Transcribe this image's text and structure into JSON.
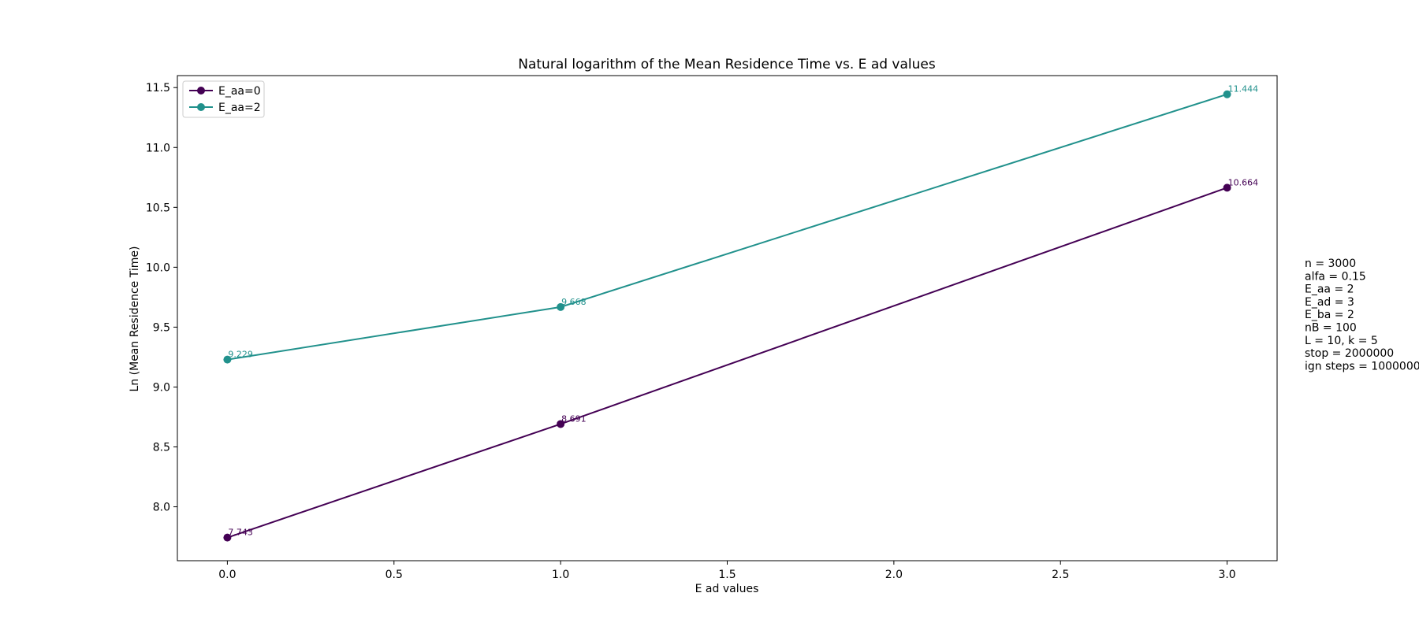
{
  "chart_data": {
    "type": "line",
    "title": "Natural logarithm of the Mean Residence Time vs. E ad values",
    "xlabel": "E ad values",
    "ylabel": "Ln (Mean Residence Time)",
    "xlim": [
      -0.15,
      3.15
    ],
    "ylim": [
      7.55,
      11.6
    ],
    "x_ticks": [
      0.0,
      0.5,
      1.0,
      1.5,
      2.0,
      2.5,
      3.0
    ],
    "x_tick_labels": [
      "0.0",
      "0.5",
      "1.0",
      "1.5",
      "2.0",
      "2.5",
      "3.0"
    ],
    "y_ticks": [
      8.0,
      8.5,
      9.0,
      9.5,
      10.0,
      10.5,
      11.0,
      11.5
    ],
    "y_tick_labels": [
      "8.0",
      "8.5",
      "9.0",
      "9.5",
      "10.0",
      "10.5",
      "11.0",
      "11.5"
    ],
    "grid": false,
    "legend_position": "top-left",
    "x": [
      0,
      1,
      3
    ],
    "series": [
      {
        "name": "E_aa=0",
        "color": "#440154",
        "values": [
          7.743,
          8.691,
          10.664
        ],
        "labels": [
          "7.743",
          "8.691",
          "10.664"
        ]
      },
      {
        "name": "E_aa=2",
        "color": "#21918c",
        "values": [
          9.229,
          9.668,
          11.444
        ],
        "labels": [
          "9.229",
          "9.668",
          "11.444"
        ]
      }
    ]
  },
  "params": {
    "lines": [
      "n = 3000",
      "alfa = 0.15",
      "E_aa = 2",
      "E_ad = 3",
      "E_ba = 2",
      "nB = 100",
      "L = 10, k = 5",
      "stop = 2000000",
      "ign steps = 1000000"
    ]
  }
}
